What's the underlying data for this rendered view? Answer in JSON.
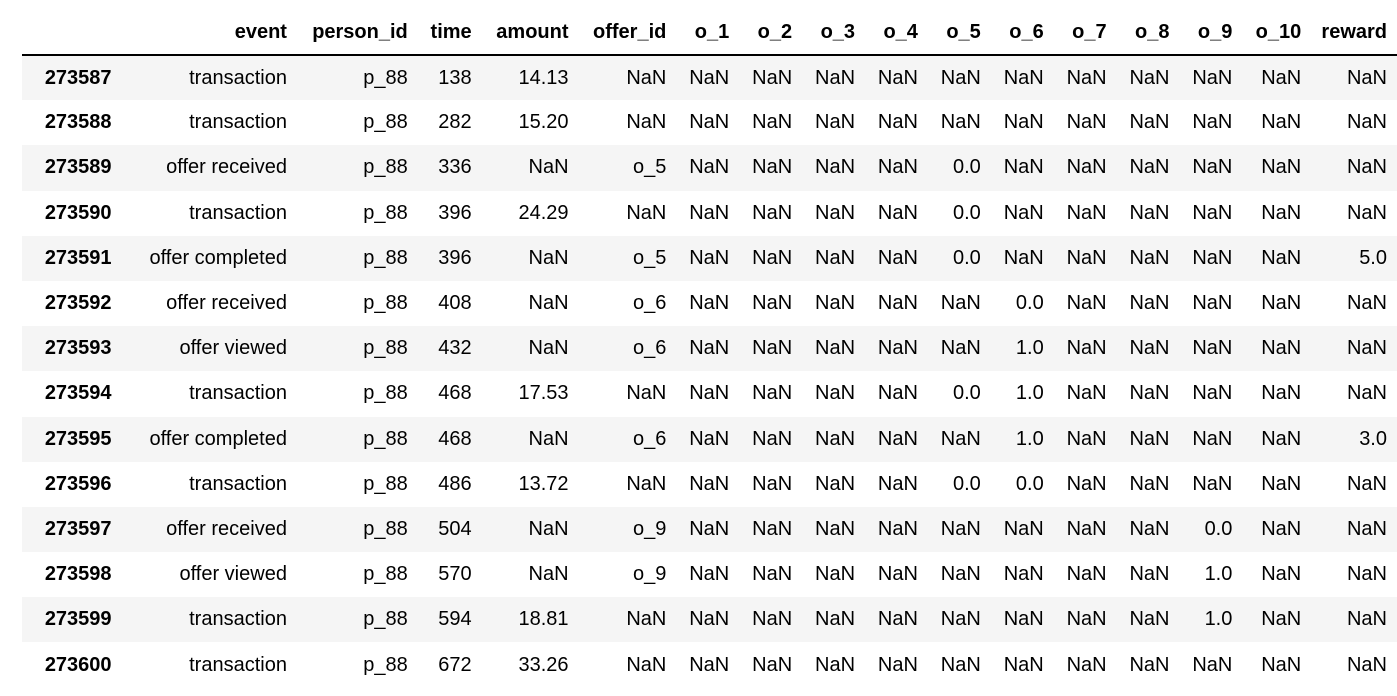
{
  "table": {
    "index_header": "",
    "columns": [
      "event",
      "person_id",
      "time",
      "amount",
      "offer_id",
      "o_1",
      "o_2",
      "o_3",
      "o_4",
      "o_5",
      "o_6",
      "o_7",
      "o_8",
      "o_9",
      "o_10",
      "reward"
    ],
    "rows": [
      {
        "index": "273587",
        "cells": [
          "transaction",
          "p_88",
          "138",
          "14.13",
          "NaN",
          "NaN",
          "NaN",
          "NaN",
          "NaN",
          "NaN",
          "NaN",
          "NaN",
          "NaN",
          "NaN",
          "NaN",
          "NaN"
        ]
      },
      {
        "index": "273588",
        "cells": [
          "transaction",
          "p_88",
          "282",
          "15.20",
          "NaN",
          "NaN",
          "NaN",
          "NaN",
          "NaN",
          "NaN",
          "NaN",
          "NaN",
          "NaN",
          "NaN",
          "NaN",
          "NaN"
        ]
      },
      {
        "index": "273589",
        "cells": [
          "offer received",
          "p_88",
          "336",
          "NaN",
          "o_5",
          "NaN",
          "NaN",
          "NaN",
          "NaN",
          "0.0",
          "NaN",
          "NaN",
          "NaN",
          "NaN",
          "NaN",
          "NaN"
        ]
      },
      {
        "index": "273590",
        "cells": [
          "transaction",
          "p_88",
          "396",
          "24.29",
          "NaN",
          "NaN",
          "NaN",
          "NaN",
          "NaN",
          "0.0",
          "NaN",
          "NaN",
          "NaN",
          "NaN",
          "NaN",
          "NaN"
        ]
      },
      {
        "index": "273591",
        "cells": [
          "offer completed",
          "p_88",
          "396",
          "NaN",
          "o_5",
          "NaN",
          "NaN",
          "NaN",
          "NaN",
          "0.0",
          "NaN",
          "NaN",
          "NaN",
          "NaN",
          "NaN",
          "5.0"
        ]
      },
      {
        "index": "273592",
        "cells": [
          "offer received",
          "p_88",
          "408",
          "NaN",
          "o_6",
          "NaN",
          "NaN",
          "NaN",
          "NaN",
          "NaN",
          "0.0",
          "NaN",
          "NaN",
          "NaN",
          "NaN",
          "NaN"
        ]
      },
      {
        "index": "273593",
        "cells": [
          "offer viewed",
          "p_88",
          "432",
          "NaN",
          "o_6",
          "NaN",
          "NaN",
          "NaN",
          "NaN",
          "NaN",
          "1.0",
          "NaN",
          "NaN",
          "NaN",
          "NaN",
          "NaN"
        ]
      },
      {
        "index": "273594",
        "cells": [
          "transaction",
          "p_88",
          "468",
          "17.53",
          "NaN",
          "NaN",
          "NaN",
          "NaN",
          "NaN",
          "0.0",
          "1.0",
          "NaN",
          "NaN",
          "NaN",
          "NaN",
          "NaN"
        ]
      },
      {
        "index": "273595",
        "cells": [
          "offer completed",
          "p_88",
          "468",
          "NaN",
          "o_6",
          "NaN",
          "NaN",
          "NaN",
          "NaN",
          "NaN",
          "1.0",
          "NaN",
          "NaN",
          "NaN",
          "NaN",
          "3.0"
        ]
      },
      {
        "index": "273596",
        "cells": [
          "transaction",
          "p_88",
          "486",
          "13.72",
          "NaN",
          "NaN",
          "NaN",
          "NaN",
          "NaN",
          "0.0",
          "0.0",
          "NaN",
          "NaN",
          "NaN",
          "NaN",
          "NaN"
        ]
      },
      {
        "index": "273597",
        "cells": [
          "offer received",
          "p_88",
          "504",
          "NaN",
          "o_9",
          "NaN",
          "NaN",
          "NaN",
          "NaN",
          "NaN",
          "NaN",
          "NaN",
          "NaN",
          "0.0",
          "NaN",
          "NaN"
        ]
      },
      {
        "index": "273598",
        "cells": [
          "offer viewed",
          "p_88",
          "570",
          "NaN",
          "o_9",
          "NaN",
          "NaN",
          "NaN",
          "NaN",
          "NaN",
          "NaN",
          "NaN",
          "NaN",
          "1.0",
          "NaN",
          "NaN"
        ]
      },
      {
        "index": "273599",
        "cells": [
          "transaction",
          "p_88",
          "594",
          "18.81",
          "NaN",
          "NaN",
          "NaN",
          "NaN",
          "NaN",
          "NaN",
          "NaN",
          "NaN",
          "NaN",
          "1.0",
          "NaN",
          "NaN"
        ]
      },
      {
        "index": "273600",
        "cells": [
          "transaction",
          "p_88",
          "672",
          "33.26",
          "NaN",
          "NaN",
          "NaN",
          "NaN",
          "NaN",
          "NaN",
          "NaN",
          "NaN",
          "NaN",
          "NaN",
          "NaN",
          "NaN"
        ]
      }
    ]
  }
}
